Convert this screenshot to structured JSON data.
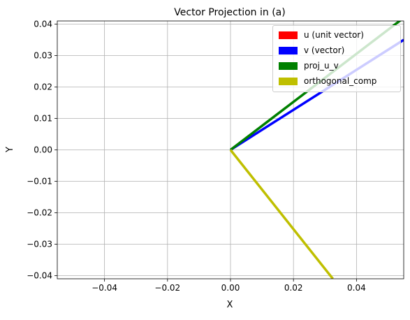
{
  "chart_data": {
    "type": "line",
    "title": "Vector Projection in (a)",
    "xlabel": "X",
    "ylabel": "Y",
    "xlim": [
      -0.055,
      0.055
    ],
    "ylim": [
      -0.041,
      0.041
    ],
    "xticks": [
      -0.04,
      -0.02,
      0.0,
      0.02,
      0.04
    ],
    "yticks": [
      -0.04,
      -0.03,
      -0.02,
      -0.01,
      0.0,
      0.01,
      0.02,
      0.03,
      0.04
    ],
    "xtick_labels": [
      "−0.04",
      "−0.02",
      "0.00",
      "0.02",
      "0.04"
    ],
    "ytick_labels": [
      "−0.04",
      "−0.03",
      "−0.02",
      "−0.01",
      "0.00",
      "0.01",
      "0.02",
      "0.03",
      "0.04"
    ],
    "grid": true,
    "legend_position": "top-right",
    "series": [
      {
        "name": "u (unit vector)",
        "color": "#ff0000",
        "points": [
          [
            0,
            0
          ],
          [
            0.0,
            0.0
          ]
        ]
      },
      {
        "name": "v (vector)",
        "color": "#0000ff",
        "points": [
          [
            0,
            0
          ],
          [
            0.055,
            0.035
          ]
        ]
      },
      {
        "name": "proj_u_v",
        "color": "#008000",
        "points": [
          [
            0,
            0
          ],
          [
            0.055,
            0.042
          ]
        ]
      },
      {
        "name": "orthogonal_comp",
        "color": "#bfbf00",
        "points": [
          [
            0,
            0
          ],
          [
            0.0325,
            -0.041
          ]
        ]
      }
    ]
  }
}
